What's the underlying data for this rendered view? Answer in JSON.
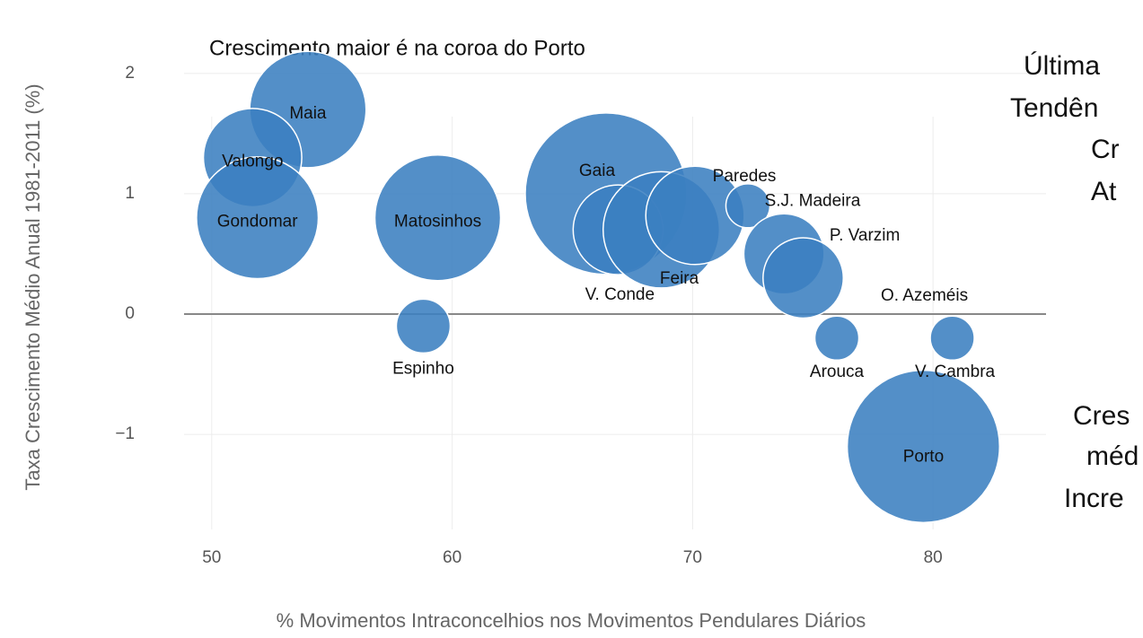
{
  "chart_data": {
    "type": "scatter",
    "title": "Crescimento maior é na coroa do Porto",
    "x_label": "% Movimentos Intraconcelhios nos Movimentos Pendulares Diários",
    "y_label": "Taxa Crescimento Médio Anual 1981-2011 (%)",
    "annotations": [
      "Última",
      "Tendên",
      "Cr",
      "At",
      "Cres",
      "méd",
      "Incre"
    ],
    "color": "#3b7fc0",
    "labels": [
      "Maia",
      "Valongo",
      "Gondomar",
      "Matosinhos",
      "Espinho",
      "Gaia",
      "V. Conde",
      "Feira",
      "Paredes",
      "S.J. Madeira",
      "P. Varzim",
      "O. Azeméis",
      "Arouca",
      "V. Cambra",
      "Porto"
    ],
    "x": [
      54,
      51.7,
      51.9,
      59.4,
      58.8,
      66.4,
      66.9,
      68.7,
      70.1,
      72.3,
      73.8,
      74.6,
      76,
      80.8,
      79.6
    ],
    "values": [
      1.7,
      1.3,
      0.8,
      0.8,
      -0.1,
      1.0,
      0.7,
      0.7,
      0.82,
      0.9,
      0.5,
      0.3,
      -0.2,
      -0.2,
      -1.1
    ],
    "sizes": [
      42,
      30,
      46,
      49,
      9,
      81,
      25,
      42,
      30,
      6,
      20,
      20,
      6,
      6,
      72
    ],
    "xlim": [
      48.85,
      84.7
    ],
    "xticks": [
      50,
      60,
      70,
      80
    ],
    "ylim": [
      -1.79,
      2.2
    ],
    "yticks": [
      {
        "value": -1,
        "label": "−1"
      },
      0,
      1,
      2
    ],
    "grid": true
  }
}
